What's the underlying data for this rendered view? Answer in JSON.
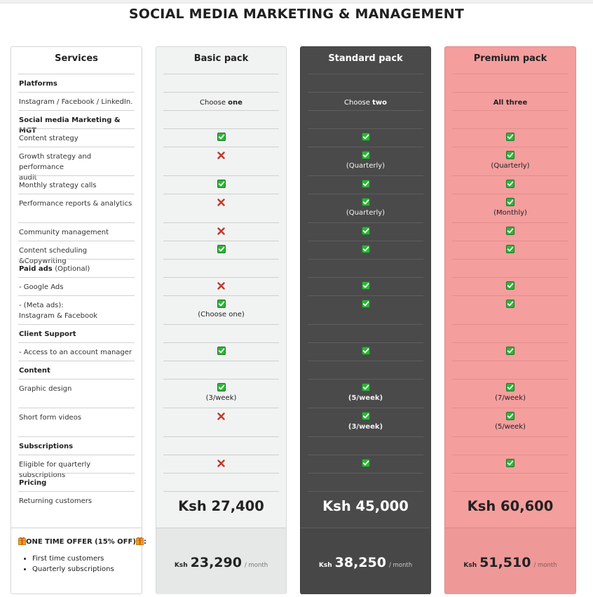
{
  "page_title": "SOCIAL MEDIA MARKETING & MANAGEMENT",
  "colors": {
    "basic_bg": "#f1f2f2",
    "standard_bg": "#4a4a4a",
    "premium_bg": "#f49e9e",
    "check_green": "#29a72f",
    "cross_red": "#c0392b"
  },
  "headers": {
    "services": "Services",
    "basic": "Basic pack",
    "standard": "Standard pack",
    "premium": "Premium pack"
  },
  "services": {
    "platforms": "Platforms",
    "instagram": "Instagram / Facebook / LinkedIn.",
    "smm": "Social media Marketing & MGT",
    "content_strategy": "Content strategy",
    "growth_1": "Growth strategy and performance",
    "growth_2": "audit",
    "monthly_calls": "Monthly strategy calls",
    "perf_reports": "Performance reports & analytics",
    "community": "Community management",
    "scheduling": "Content scheduling &Copywriting",
    "paid_ads": "Paid ads",
    "paid_ads_note": "(Optional)",
    "google_ads": "- Google Ads",
    "meta_1": "- (Meta  ads):",
    "meta_2": "Instagram & Facebook",
    "client_support": "Client Support",
    "account_manager": "- Access to an account manager",
    "content": "Content",
    "graphic_design": "Graphic design",
    "short_videos": "Short form videos",
    "subscriptions": "Subscriptions",
    "quarterly_eligible": "Eligible for quarterly subscriptions",
    "pricing": "Pricing",
    "returning": "Returning customers"
  },
  "offer": {
    "title": "ONE TIME OFFER (15% OFF)",
    "items": [
      "First time customers",
      "Quarterly subscriptions"
    ],
    "gift_icon": "gift-icon"
  },
  "basic": {
    "platform_pre": "Choose ",
    "platform_bold": "one",
    "content_strategy": "check",
    "growth": "cross",
    "monthly_calls": "check",
    "perf_reports": "cross",
    "community": "cross",
    "scheduling": "check",
    "google_ads": "cross",
    "meta": "check",
    "meta_note": "(Choose one)",
    "account_manager": "check",
    "graphic_design": "check",
    "graphic_note": "(3/week)",
    "short_videos": "cross",
    "quarterly": "cross",
    "price": "Ksh 27,400",
    "offer_ksh": "Ksh",
    "offer_amount": "23,290",
    "offer_per": "/ month"
  },
  "standard": {
    "platform_pre": "Choose ",
    "platform_bold": "two",
    "content_strategy": "check",
    "growth": "check",
    "growth_note": "(Quarterly)",
    "monthly_calls": "check",
    "perf_reports": "check",
    "perf_note": "(Quarterly)",
    "community": "check",
    "scheduling": "check",
    "google_ads": "check",
    "meta": "check",
    "account_manager": "check",
    "graphic_design": "check",
    "graphic_note": "(5/week)",
    "short_videos": "check",
    "short_note": "(3/week)",
    "quarterly": "check",
    "price": "Ksh 45,000",
    "offer_ksh": "Ksh",
    "offer_amount": "38,250",
    "offer_per": "/ month"
  },
  "premium": {
    "platform_bold": "All three",
    "content_strategy": "check",
    "growth": "check",
    "growth_note": "(Quarterly)",
    "monthly_calls": "check",
    "perf_reports": "check",
    "perf_note": "(Monthly)",
    "community": "check",
    "scheduling": "check",
    "google_ads": "check",
    "meta": "check",
    "account_manager": "check",
    "graphic_design": "check",
    "graphic_note": "(7/week)",
    "short_videos": "check",
    "short_note": "(5/week)",
    "quarterly": "check",
    "price": "Ksh 60,600",
    "offer_ksh": "Ksh",
    "offer_amount": "51,510",
    "offer_per": "/ month"
  }
}
